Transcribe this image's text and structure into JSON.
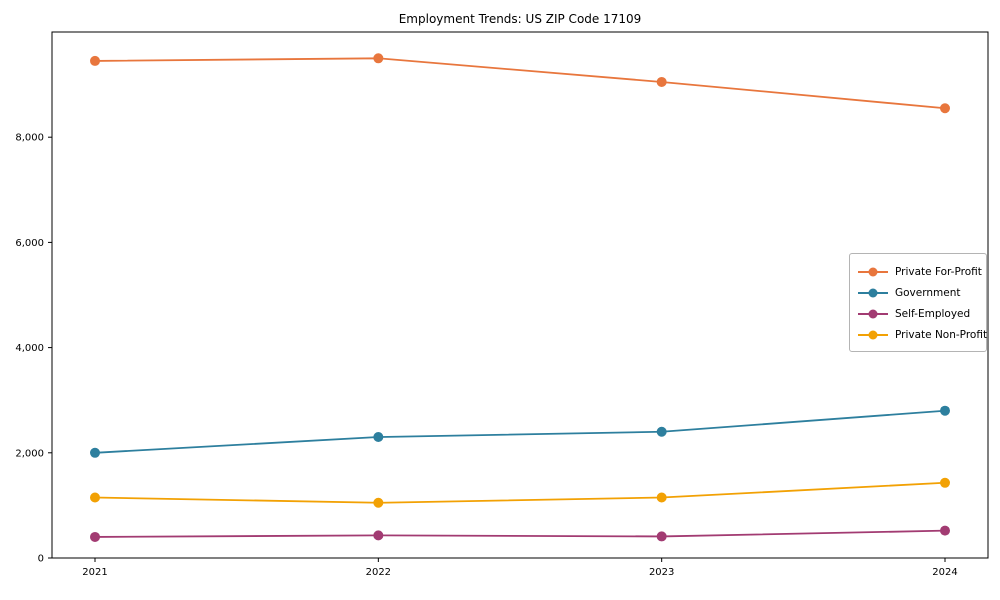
{
  "chart_data": {
    "type": "line",
    "title": "Employment Trends: US ZIP Code 17109",
    "x": [
      "2021",
      "2022",
      "2023",
      "2024"
    ],
    "series": [
      {
        "name": "Private For-Profit",
        "color": "#e8763d",
        "values": [
          9450,
          9500,
          9050,
          8550
        ]
      },
      {
        "name": "Government",
        "color": "#2d7f9e",
        "values": [
          2000,
          2300,
          2400,
          2800
        ]
      },
      {
        "name": "Self-Employed",
        "color": "#a23b72",
        "values": [
          400,
          430,
          410,
          520
        ]
      },
      {
        "name": "Private Non-Profit",
        "color": "#f2a104",
        "values": [
          1150,
          1050,
          1150,
          1430
        ]
      }
    ],
    "xlabel": "",
    "ylabel": "",
    "ylim": [
      0,
      10000
    ],
    "yticks": [
      0,
      2000,
      4000,
      6000,
      8000
    ],
    "ytick_labels": [
      "0",
      "2,000",
      "4,000",
      "6,000",
      "8,000"
    ],
    "grid": false,
    "legend_position": "center right",
    "axis_color": "#000000",
    "background_color": "#ffffff"
  }
}
